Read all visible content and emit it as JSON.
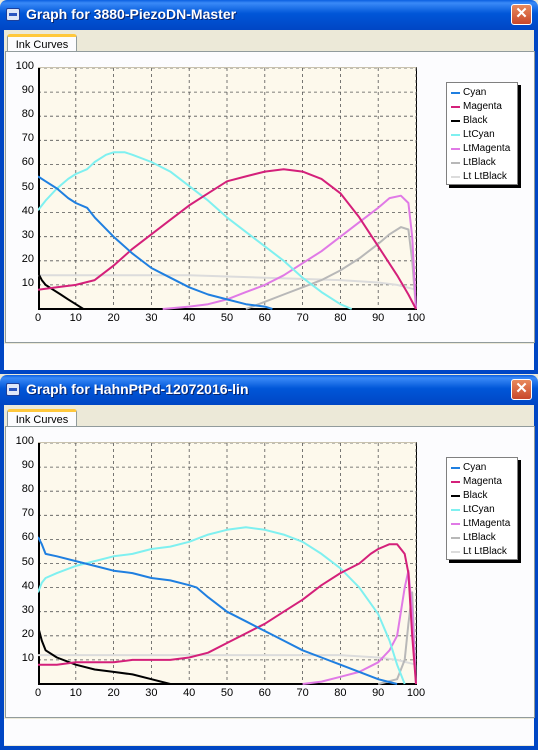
{
  "windows": [
    {
      "title": "Graph for 3880-PiezoDN-Master",
      "tab": "Ink Curves",
      "legend": [
        "Cyan",
        "Magenta",
        "Black",
        "LtCyan",
        "LtMagenta",
        "LtBlack",
        "Lt LtBlack"
      ]
    },
    {
      "title": "Graph for HahnPtPd-12072016-lin",
      "tab": "Ink Curves",
      "legend": [
        "Cyan",
        "Magenta",
        "Black",
        "LtCyan",
        "LtMagenta",
        "LtBlack",
        "Lt LtBlack"
      ]
    }
  ],
  "close_glyph": "✕",
  "colors": {
    "Cyan": "#1f7fe0",
    "Magenta": "#d4207a",
    "Black": "#000000",
    "LtCyan": "#7ff0f0",
    "LtMagenta": "#e07ae6",
    "LtBlack": "#b8b8b8",
    "Lt LtBlack": "#dcdcdc"
  },
  "chart_data": [
    {
      "type": "line",
      "title": "",
      "xlim": [
        0,
        100
      ],
      "ylim": [
        0,
        100
      ],
      "xticks": [
        0,
        10,
        20,
        30,
        40,
        50,
        60,
        70,
        80,
        90,
        100
      ],
      "yticks": [
        10,
        20,
        30,
        40,
        50,
        60,
        70,
        80,
        90,
        100
      ],
      "grid": true,
      "legend_position": "right",
      "series": [
        {
          "name": "Cyan",
          "points": [
            [
              0,
              55
            ],
            [
              2,
              53
            ],
            [
              5,
              50
            ],
            [
              8,
              46
            ],
            [
              10,
              44
            ],
            [
              13,
              42
            ],
            [
              15,
              38
            ],
            [
              20,
              30
            ],
            [
              25,
              23
            ],
            [
              30,
              17
            ],
            [
              35,
              13
            ],
            [
              40,
              9
            ],
            [
              45,
              6
            ],
            [
              50,
              4
            ],
            [
              55,
              2
            ],
            [
              60,
              1
            ],
            [
              62,
              0
            ]
          ]
        },
        {
          "name": "Magenta",
          "points": [
            [
              0,
              8
            ],
            [
              5,
              9
            ],
            [
              10,
              10
            ],
            [
              15,
              12
            ],
            [
              20,
              18
            ],
            [
              25,
              25
            ],
            [
              30,
              31
            ],
            [
              35,
              37
            ],
            [
              40,
              43
            ],
            [
              45,
              48
            ],
            [
              50,
              53
            ],
            [
              55,
              55
            ],
            [
              60,
              57
            ],
            [
              65,
              58
            ],
            [
              70,
              57
            ],
            [
              75,
              54
            ],
            [
              80,
              48
            ],
            [
              85,
              38
            ],
            [
              90,
              26
            ],
            [
              95,
              14
            ],
            [
              98,
              6
            ],
            [
              100,
              0
            ]
          ]
        },
        {
          "name": "Black",
          "points": [
            [
              0,
              15
            ],
            [
              1,
              12
            ],
            [
              2,
              10
            ],
            [
              4,
              8
            ],
            [
              6,
              6
            ],
            [
              8,
              4
            ],
            [
              10,
              2
            ],
            [
              12,
              0
            ]
          ]
        },
        {
          "name": "LtCyan",
          "points": [
            [
              0,
              41
            ],
            [
              2,
              45
            ],
            [
              5,
              50
            ],
            [
              8,
              54
            ],
            [
              10,
              56
            ],
            [
              13,
              58
            ],
            [
              15,
              61
            ],
            [
              18,
              64
            ],
            [
              20,
              65
            ],
            [
              23,
              65
            ],
            [
              25,
              64
            ],
            [
              30,
              61
            ],
            [
              35,
              57
            ],
            [
              40,
              51
            ],
            [
              45,
              45
            ],
            [
              50,
              38
            ],
            [
              55,
              32
            ],
            [
              60,
              26
            ],
            [
              65,
              20
            ],
            [
              70,
              13
            ],
            [
              75,
              7
            ],
            [
              80,
              2
            ],
            [
              83,
              0
            ]
          ]
        },
        {
          "name": "LtMagenta",
          "points": [
            [
              33,
              0
            ],
            [
              40,
              1
            ],
            [
              45,
              2
            ],
            [
              50,
              4
            ],
            [
              55,
              7
            ],
            [
              60,
              10
            ],
            [
              65,
              14
            ],
            [
              70,
              19
            ],
            [
              75,
              24
            ],
            [
              80,
              30
            ],
            [
              85,
              36
            ],
            [
              90,
              42
            ],
            [
              93,
              46
            ],
            [
              96,
              47
            ],
            [
              98,
              44
            ],
            [
              99,
              30
            ],
            [
              100,
              0
            ]
          ]
        },
        {
          "name": "LtBlack",
          "points": [
            [
              55,
              0
            ],
            [
              60,
              3
            ],
            [
              65,
              6
            ],
            [
              70,
              9
            ],
            [
              75,
              12
            ],
            [
              80,
              16
            ],
            [
              85,
              21
            ],
            [
              90,
              27
            ],
            [
              93,
              31
            ],
            [
              96,
              34
            ],
            [
              98,
              33
            ],
            [
              99,
              20
            ],
            [
              100,
              0
            ]
          ]
        },
        {
          "name": "Lt LtBlack",
          "points": [
            [
              0,
              14
            ],
            [
              20,
              14
            ],
            [
              40,
              14
            ],
            [
              60,
              13
            ],
            [
              80,
              12
            ],
            [
              90,
              11
            ],
            [
              95,
              10
            ],
            [
              100,
              8
            ]
          ]
        }
      ]
    },
    {
      "type": "line",
      "title": "",
      "xlim": [
        0,
        100
      ],
      "ylim": [
        0,
        100
      ],
      "xticks": [
        0,
        10,
        20,
        30,
        40,
        50,
        60,
        70,
        80,
        90,
        100
      ],
      "yticks": [
        10,
        20,
        30,
        40,
        50,
        60,
        70,
        80,
        90,
        100
      ],
      "grid": true,
      "legend_position": "right",
      "series": [
        {
          "name": "Cyan",
          "points": [
            [
              0,
              61
            ],
            [
              1,
              58
            ],
            [
              2,
              54
            ],
            [
              5,
              53
            ],
            [
              10,
              51
            ],
            [
              15,
              49
            ],
            [
              20,
              47
            ],
            [
              25,
              46
            ],
            [
              30,
              44
            ],
            [
              35,
              43
            ],
            [
              40,
              41
            ],
            [
              42,
              40
            ],
            [
              45,
              36
            ],
            [
              50,
              30
            ],
            [
              55,
              26
            ],
            [
              60,
              22
            ],
            [
              65,
              18
            ],
            [
              70,
              14
            ],
            [
              75,
              11
            ],
            [
              80,
              8
            ],
            [
              85,
              5
            ],
            [
              90,
              2
            ],
            [
              95,
              0
            ]
          ]
        },
        {
          "name": "Magenta",
          "points": [
            [
              0,
              8
            ],
            [
              5,
              8
            ],
            [
              10,
              9
            ],
            [
              15,
              9
            ],
            [
              20,
              9
            ],
            [
              25,
              10
            ],
            [
              30,
              10
            ],
            [
              35,
              10
            ],
            [
              40,
              11
            ],
            [
              45,
              13
            ],
            [
              50,
              17
            ],
            [
              55,
              21
            ],
            [
              60,
              25
            ],
            [
              65,
              30
            ],
            [
              70,
              35
            ],
            [
              75,
              41
            ],
            [
              80,
              46
            ],
            [
              85,
              50
            ],
            [
              88,
              54
            ],
            [
              90,
              56
            ],
            [
              93,
              58
            ],
            [
              95,
              58
            ],
            [
              97,
              54
            ],
            [
              98,
              46
            ],
            [
              99,
              20
            ],
            [
              100,
              0
            ]
          ]
        },
        {
          "name": "Black",
          "points": [
            [
              0,
              24
            ],
            [
              1,
              18
            ],
            [
              2,
              14
            ],
            [
              5,
              11
            ],
            [
              10,
              8
            ],
            [
              15,
              6
            ],
            [
              20,
              5
            ],
            [
              25,
              4
            ],
            [
              30,
              2
            ],
            [
              35,
              0
            ]
          ]
        },
        {
          "name": "LtCyan",
          "points": [
            [
              0,
              38
            ],
            [
              1,
              42
            ],
            [
              2,
              44
            ],
            [
              5,
              46
            ],
            [
              10,
              49
            ],
            [
              15,
              51
            ],
            [
              20,
              53
            ],
            [
              25,
              54
            ],
            [
              30,
              56
            ],
            [
              35,
              57
            ],
            [
              40,
              59
            ],
            [
              45,
              62
            ],
            [
              50,
              64
            ],
            [
              55,
              65
            ],
            [
              60,
              64
            ],
            [
              65,
              62
            ],
            [
              70,
              59
            ],
            [
              75,
              54
            ],
            [
              80,
              48
            ],
            [
              85,
              40
            ],
            [
              90,
              29
            ],
            [
              93,
              18
            ],
            [
              95,
              8
            ],
            [
              97,
              0
            ]
          ]
        },
        {
          "name": "LtMagenta",
          "points": [
            [
              70,
              0
            ],
            [
              75,
              1
            ],
            [
              80,
              3
            ],
            [
              85,
              5
            ],
            [
              90,
              9
            ],
            [
              93,
              14
            ],
            [
              95,
              20
            ],
            [
              96,
              30
            ],
            [
              97,
              40
            ],
            [
              98,
              47
            ],
            [
              99,
              30
            ],
            [
              100,
              0
            ]
          ]
        },
        {
          "name": "LtBlack",
          "points": [
            [
              90,
              0
            ],
            [
              95,
              2
            ],
            [
              97,
              10
            ],
            [
              98,
              25
            ],
            [
              99,
              38
            ],
            [
              100,
              0
            ]
          ]
        },
        {
          "name": "Lt LtBlack",
          "points": [
            [
              0,
              12
            ],
            [
              20,
              12
            ],
            [
              40,
              12
            ],
            [
              60,
              12
            ],
            [
              80,
              12
            ],
            [
              90,
              11
            ],
            [
              95,
              10
            ],
            [
              100,
              8
            ]
          ]
        }
      ]
    }
  ]
}
